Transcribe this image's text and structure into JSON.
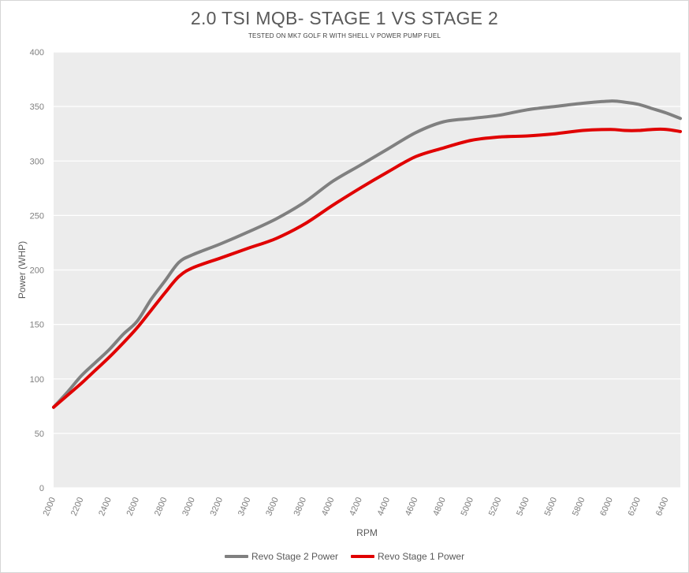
{
  "chart_data": {
    "type": "line",
    "title": "2.0 TSI MQB- STAGE 1 VS STAGE 2",
    "subtitle": "TESTED ON MK7 GOLF R WITH SHELL V POWER PUMP FUEL",
    "xlabel": "RPM",
    "ylabel": "Power (WHP)",
    "xlim": [
      2000,
      6500
    ],
    "ylim": [
      0,
      400
    ],
    "x_ticks": [
      "2000",
      "2200",
      "2400",
      "2600",
      "2800",
      "3000",
      "3200",
      "3400",
      "3600",
      "3800",
      "4000",
      "4200",
      "4400",
      "4600",
      "4800",
      "5000",
      "5200",
      "5400",
      "5600",
      "5800",
      "6000",
      "6200",
      "6400"
    ],
    "y_ticks": [
      "0",
      "50",
      "100",
      "150",
      "200",
      "250",
      "300",
      "350",
      "400"
    ],
    "grid": "horizontal",
    "legend_position": "bottom",
    "series": [
      {
        "name": "Revo Stage 2 Power",
        "color": "#808080",
        "x": [
          2000,
          2100,
          2200,
          2300,
          2400,
          2500,
          2600,
          2700,
          2800,
          2900,
          3000,
          3200,
          3400,
          3600,
          3800,
          4000,
          4200,
          4400,
          4600,
          4800,
          5000,
          5200,
          5400,
          5600,
          5800,
          6000,
          6100,
          6200,
          6300,
          6400,
          6500
        ],
        "y": [
          74,
          88,
          103,
          115,
          127,
          141,
          153,
          173,
          190,
          207,
          214,
          224,
          235,
          247,
          262,
          281,
          296,
          311,
          326,
          336,
          339,
          342,
          347,
          350,
          353,
          355,
          354,
          352,
          348,
          344,
          339
        ]
      },
      {
        "name": "Revo Stage 1 Power",
        "color": "#e00000",
        "x": [
          2000,
          2100,
          2200,
          2300,
          2400,
          2500,
          2600,
          2700,
          2800,
          2900,
          3000,
          3200,
          3400,
          3600,
          3800,
          4000,
          4200,
          4400,
          4600,
          4800,
          5000,
          5200,
          5400,
          5600,
          5800,
          6000,
          6100,
          6200,
          6300,
          6400,
          6500
        ],
        "y": [
          74,
          85,
          96,
          108,
          120,
          133,
          147,
          163,
          179,
          194,
          202,
          211,
          220,
          229,
          242,
          259,
          275,
          290,
          304,
          312,
          319,
          322,
          323,
          325,
          328,
          329,
          328,
          328,
          329,
          329,
          327
        ]
      }
    ]
  }
}
